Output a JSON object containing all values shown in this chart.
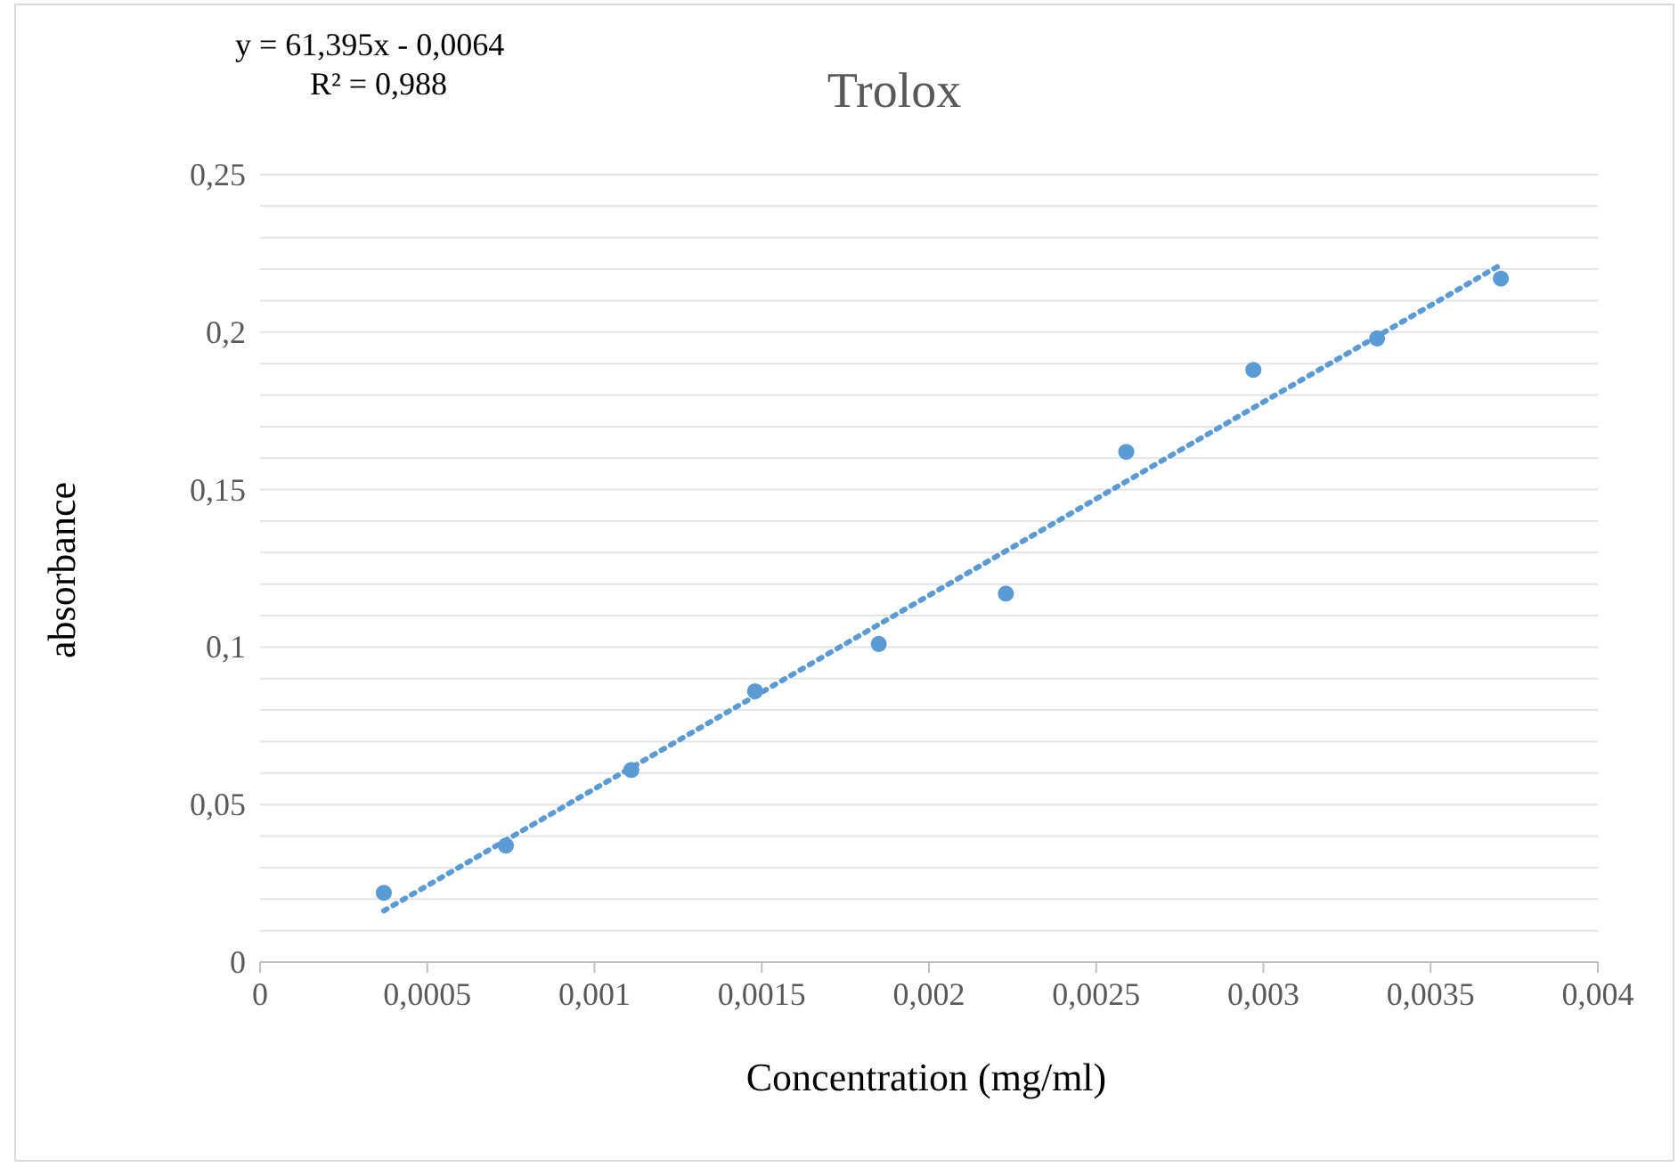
{
  "chart_data": {
    "type": "scatter",
    "title": "Trolox",
    "xlabel": "Concentration (mg/ml)",
    "ylabel": "absorbance",
    "annotations": [
      "y = 61,395x - 0,0064",
      "R² = 0,988"
    ],
    "series": [
      {
        "color": "#5b9bd5",
        "x": [
          0.00037,
          0.000735,
          0.00111,
          0.00148,
          0.00185,
          0.00223,
          0.00259,
          0.00297,
          0.00334,
          0.00371
        ],
        "values": [
          0.022,
          0.037,
          0.061,
          0.086,
          0.101,
          0.117,
          0.162,
          0.188,
          0.198,
          0.217
        ],
        "marker": "circle"
      },
      {
        "type": "line",
        "color": "#5b9bd5",
        "x": [
          0.00037,
          0.00371
        ],
        "values": [
          0.0163,
          0.2214
        ],
        "line_style": "dotted",
        "marker": "none"
      }
    ],
    "xlim": [
      0,
      0.004
    ],
    "xticks": [
      {
        "value": 0,
        "label": "0"
      },
      {
        "value": 0.0005,
        "label": "0,0005"
      },
      {
        "value": 0.001,
        "label": "0,001"
      },
      {
        "value": 0.0015,
        "label": "0,0015"
      },
      {
        "value": 0.002,
        "label": "0,002"
      },
      {
        "value": 0.0025,
        "label": "0,0025"
      },
      {
        "value": 0.003,
        "label": "0,003"
      },
      {
        "value": 0.0035,
        "label": "0,0035"
      },
      {
        "value": 0.004,
        "label": "0,004"
      }
    ],
    "ylim": [
      0,
      0.25
    ],
    "yticks": [
      {
        "value": 0,
        "label": "0"
      },
      {
        "value": 0.01,
        "label": null
      },
      {
        "value": 0.02,
        "label": null
      },
      {
        "value": 0.03,
        "label": null
      },
      {
        "value": 0.04,
        "label": null
      },
      {
        "value": 0.05,
        "label": "0,05"
      },
      {
        "value": 0.06,
        "label": null
      },
      {
        "value": 0.07,
        "label": null
      },
      {
        "value": 0.08,
        "label": null
      },
      {
        "value": 0.09,
        "label": null
      },
      {
        "value": 0.1,
        "label": "0,1"
      },
      {
        "value": 0.11,
        "label": null
      },
      {
        "value": 0.12,
        "label": null
      },
      {
        "value": 0.13,
        "label": null
      },
      {
        "value": 0.14,
        "label": null
      },
      {
        "value": 0.15,
        "label": "0,15"
      },
      {
        "value": 0.16,
        "label": null
      },
      {
        "value": 0.17,
        "label": null
      },
      {
        "value": 0.18,
        "label": null
      },
      {
        "value": 0.19,
        "label": null
      },
      {
        "value": 0.2,
        "label": "0,2"
      },
      {
        "value": 0.21,
        "label": null
      },
      {
        "value": 0.22,
        "label": null
      },
      {
        "value": 0.23,
        "label": null
      },
      {
        "value": 0.24,
        "label": null
      },
      {
        "value": 0.25,
        "label": "0,25"
      }
    ],
    "grid": "y",
    "legend": false
  }
}
